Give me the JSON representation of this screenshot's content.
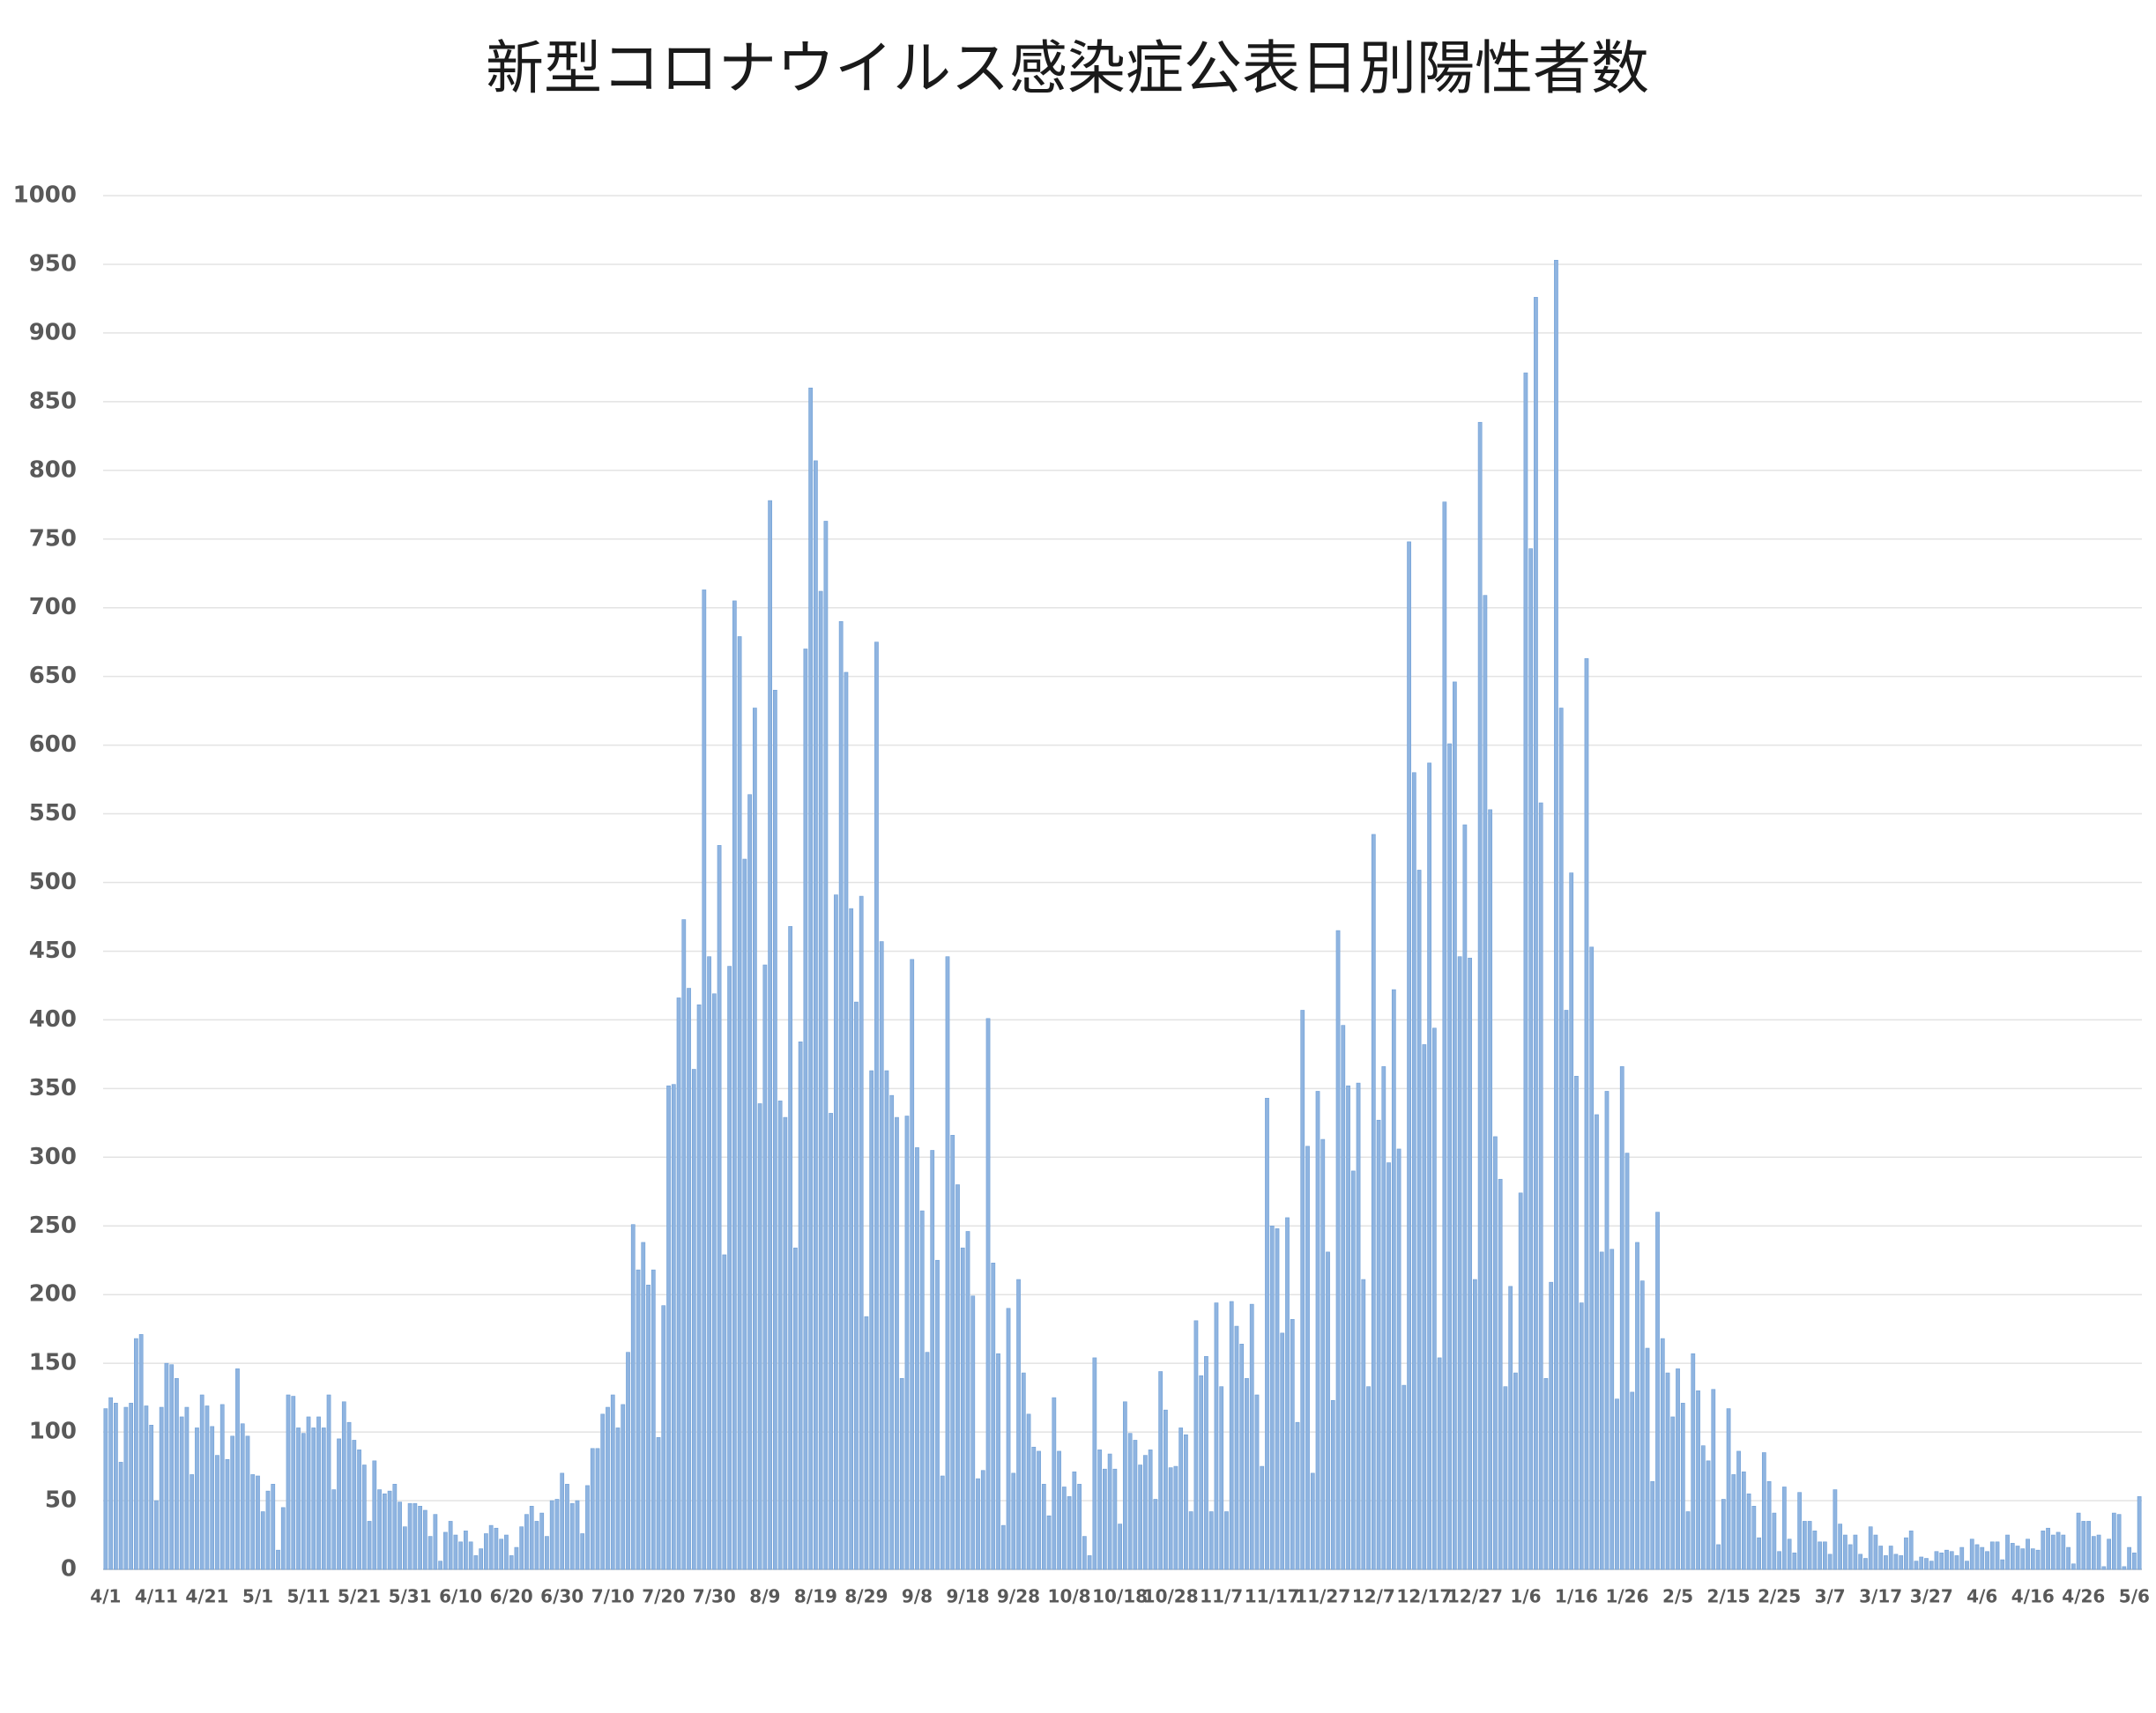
{
  "chart_data": {
    "type": "bar",
    "title": "新型コロナウイルス感染症公表日別陽性者数",
    "color": "#8fb4e0",
    "grid": true,
    "ylim": [
      0,
      1000
    ],
    "yticks": [
      0,
      50,
      100,
      150,
      200,
      250,
      300,
      350,
      400,
      450,
      500,
      550,
      600,
      650,
      700,
      750,
      800,
      850,
      900,
      950,
      1000
    ],
    "categories": [
      "4/1",
      null,
      null,
      null,
      null,
      null,
      null,
      null,
      null,
      null,
      "4/11",
      null,
      null,
      null,
      null,
      null,
      null,
      null,
      null,
      null,
      "4/21",
      null,
      null,
      null,
      null,
      null,
      null,
      null,
      null,
      null,
      "5/1",
      null,
      null,
      null,
      null,
      null,
      null,
      null,
      null,
      null,
      "5/11",
      null,
      null,
      null,
      null,
      null,
      null,
      null,
      null,
      null,
      "5/21",
      null,
      null,
      null,
      null,
      null,
      null,
      null,
      null,
      null,
      "5/31",
      null,
      null,
      null,
      null,
      null,
      null,
      null,
      null,
      null,
      "6/10",
      null,
      null,
      null,
      null,
      null,
      null,
      null,
      null,
      null,
      "6/20",
      null,
      null,
      null,
      null,
      null,
      null,
      null,
      null,
      null,
      "6/30",
      null,
      null,
      null,
      null,
      null,
      null,
      null,
      null,
      null,
      "7/10",
      null,
      null,
      null,
      null,
      null,
      null,
      null,
      null,
      null,
      "7/20",
      null,
      null,
      null,
      null,
      null,
      null,
      null,
      null,
      null,
      "7/30",
      null,
      null,
      null,
      null,
      null,
      null,
      null,
      null,
      null,
      "8/9",
      null,
      null,
      null,
      null,
      null,
      null,
      null,
      null,
      null,
      "8/19",
      null,
      null,
      null,
      null,
      null,
      null,
      null,
      null,
      null,
      "8/29",
      null,
      null,
      null,
      null,
      null,
      null,
      null,
      null,
      null,
      "9/8",
      null,
      null,
      null,
      null,
      null,
      null,
      null,
      null,
      null,
      "9/18",
      null,
      null,
      null,
      null,
      null,
      null,
      null,
      null,
      null,
      "9/28",
      null,
      null,
      null,
      null,
      null,
      null,
      null,
      null,
      null,
      "10/8",
      null,
      null,
      null,
      null,
      null,
      null,
      null,
      null,
      null,
      "10/18",
      null,
      null,
      null,
      null,
      null,
      null,
      null,
      null,
      null,
      "10/28",
      null,
      null,
      null,
      null,
      null,
      null,
      null,
      null,
      null,
      "11/7",
      null,
      null,
      null,
      null,
      null,
      null,
      null,
      null,
      null,
      "11/17",
      null,
      null,
      null,
      null,
      null,
      null,
      null,
      null,
      null,
      "11/27",
      null,
      null,
      null,
      null,
      null,
      null,
      null,
      null,
      null,
      "12/7",
      null,
      null,
      null,
      null,
      null,
      null,
      null,
      null,
      null,
      "12/17",
      null,
      null,
      null,
      null,
      null,
      null,
      null,
      null,
      null,
      "12/27",
      null,
      null,
      null,
      null,
      null,
      null,
      null,
      null,
      null,
      "1/6",
      null,
      null,
      null,
      null,
      null,
      null,
      null,
      null,
      null,
      "1/16",
      null,
      null,
      null,
      null,
      null,
      null,
      null,
      null,
      null,
      "1/26",
      null,
      null,
      null,
      null,
      null,
      null,
      null,
      null,
      null,
      "2/5",
      null,
      null,
      null,
      null,
      null,
      null,
      null,
      null,
      null,
      "2/15",
      null,
      null,
      null,
      null,
      null,
      null,
      null,
      null,
      null,
      "2/25",
      null,
      null,
      null,
      null,
      null,
      null,
      null,
      null,
      null,
      "3/7",
      null,
      null,
      null,
      null,
      null,
      null,
      null,
      null,
      null,
      "3/17",
      null,
      null,
      null,
      null,
      null,
      null,
      null,
      null,
      null,
      "3/27",
      null,
      null,
      null,
      null,
      null,
      null,
      null,
      null,
      null,
      "4/6",
      null,
      null,
      null,
      null,
      null,
      null,
      null,
      null,
      null,
      "4/16",
      null,
      null,
      null,
      null,
      null,
      null,
      null,
      null,
      null,
      "4/26",
      null,
      null,
      null,
      null,
      null,
      null,
      null,
      null,
      null,
      "5/6",
      null
    ],
    "values": [
      117,
      125,
      121,
      78,
      118,
      121,
      168,
      171,
      119,
      105,
      50,
      118,
      150,
      149,
      139,
      111,
      118,
      69,
      103,
      127,
      119,
      104,
      83,
      120,
      80,
      97,
      146,
      106,
      97,
      69,
      68,
      42,
      57,
      62,
      14,
      45,
      127,
      126,
      103,
      99,
      111,
      103,
      111,
      103,
      127,
      58,
      95,
      122,
      107,
      94,
      87,
      76,
      35,
      79,
      58,
      55,
      57,
      62,
      49,
      31,
      48,
      48,
      46,
      43,
      24,
      40,
      6,
      27,
      35,
      25,
      20,
      28,
      20,
      10,
      15,
      26,
      32,
      30,
      22,
      25,
      10,
      16,
      31,
      40,
      46,
      35,
      41,
      24,
      50,
      51,
      70,
      62,
      48,
      50,
      26,
      61,
      88,
      88,
      113,
      118,
      127,
      103,
      120,
      158,
      251,
      218,
      238,
      207,
      218,
      96,
      192,
      352,
      353,
      416,
      473,
      423,
      364,
      411,
      713,
      446,
      419,
      527,
      229,
      439,
      705,
      679,
      517,
      564,
      627,
      339,
      440,
      778,
      640,
      341,
      329,
      468,
      234,
      384,
      670,
      860,
      807,
      712,
      763,
      332,
      491,
      690,
      653,
      481,
      413,
      490,
      184,
      363,
      675,
      457,
      363,
      345,
      329,
      139,
      330,
      444,
      307,
      261,
      158,
      305,
      225,
      68,
      446,
      316,
      280,
      234,
      246,
      199,
      66,
      72,
      401,
      223,
      157,
      32,
      190,
      70,
      211,
      143,
      113,
      89,
      86,
      62,
      39,
      125,
      86,
      60,
      53,
      71,
      62,
      24,
      10,
      154,
      87,
      73,
      84,
      73,
      33,
      122,
      99,
      94,
      76,
      83,
      87,
      51,
      144,
      116,
      74,
      75,
      103,
      98,
      42,
      181,
      141,
      155,
      42,
      194,
      133,
      42,
      195,
      177,
      164,
      139,
      193,
      127,
      75,
      343,
      250,
      248,
      172,
      256,
      182,
      107,
      407,
      308,
      70,
      348,
      313,
      231,
      123,
      465,
      396,
      352,
      290,
      354,
      211,
      133,
      535,
      327,
      366,
      296,
      422,
      306,
      134,
      748,
      580,
      509,
      382,
      587,
      394,
      154,
      777,
      601,
      646,
      446,
      542,
      445,
      211,
      835,
      709,
      553,
      315,
      284,
      133,
      206,
      143,
      274,
      871,
      743,
      926,
      558,
      139,
      209,
      953,
      627,
      407,
      507,
      359,
      194,
      663,
      453,
      331,
      231,
      348,
      233,
      124,
      366,
      303,
      129,
      238,
      210,
      161,
      64,
      260,
      168,
      143,
      111,
      146,
      121,
      42,
      157,
      130,
      90,
      79,
      131,
      18,
      51,
      117,
      69,
      86,
      71,
      55,
      46,
      23,
      85,
      64,
      41,
      13,
      60,
      22,
      12,
      56,
      35,
      35,
      28,
      20,
      20,
      11,
      58,
      33,
      25,
      18,
      25,
      11,
      8,
      31,
      25,
      17,
      10,
      17,
      11,
      10,
      23,
      28,
      6,
      9,
      8,
      6,
      13,
      12,
      14,
      13,
      10,
      16,
      6,
      22,
      18,
      16,
      13,
      20,
      20,
      7,
      25,
      19,
      17,
      15,
      22,
      15,
      14,
      28,
      30,
      25,
      27,
      25,
      16,
      4,
      41,
      35,
      35,
      24,
      25,
      2,
      22,
      41,
      40,
      2,
      16,
      12,
      53
    ]
  }
}
